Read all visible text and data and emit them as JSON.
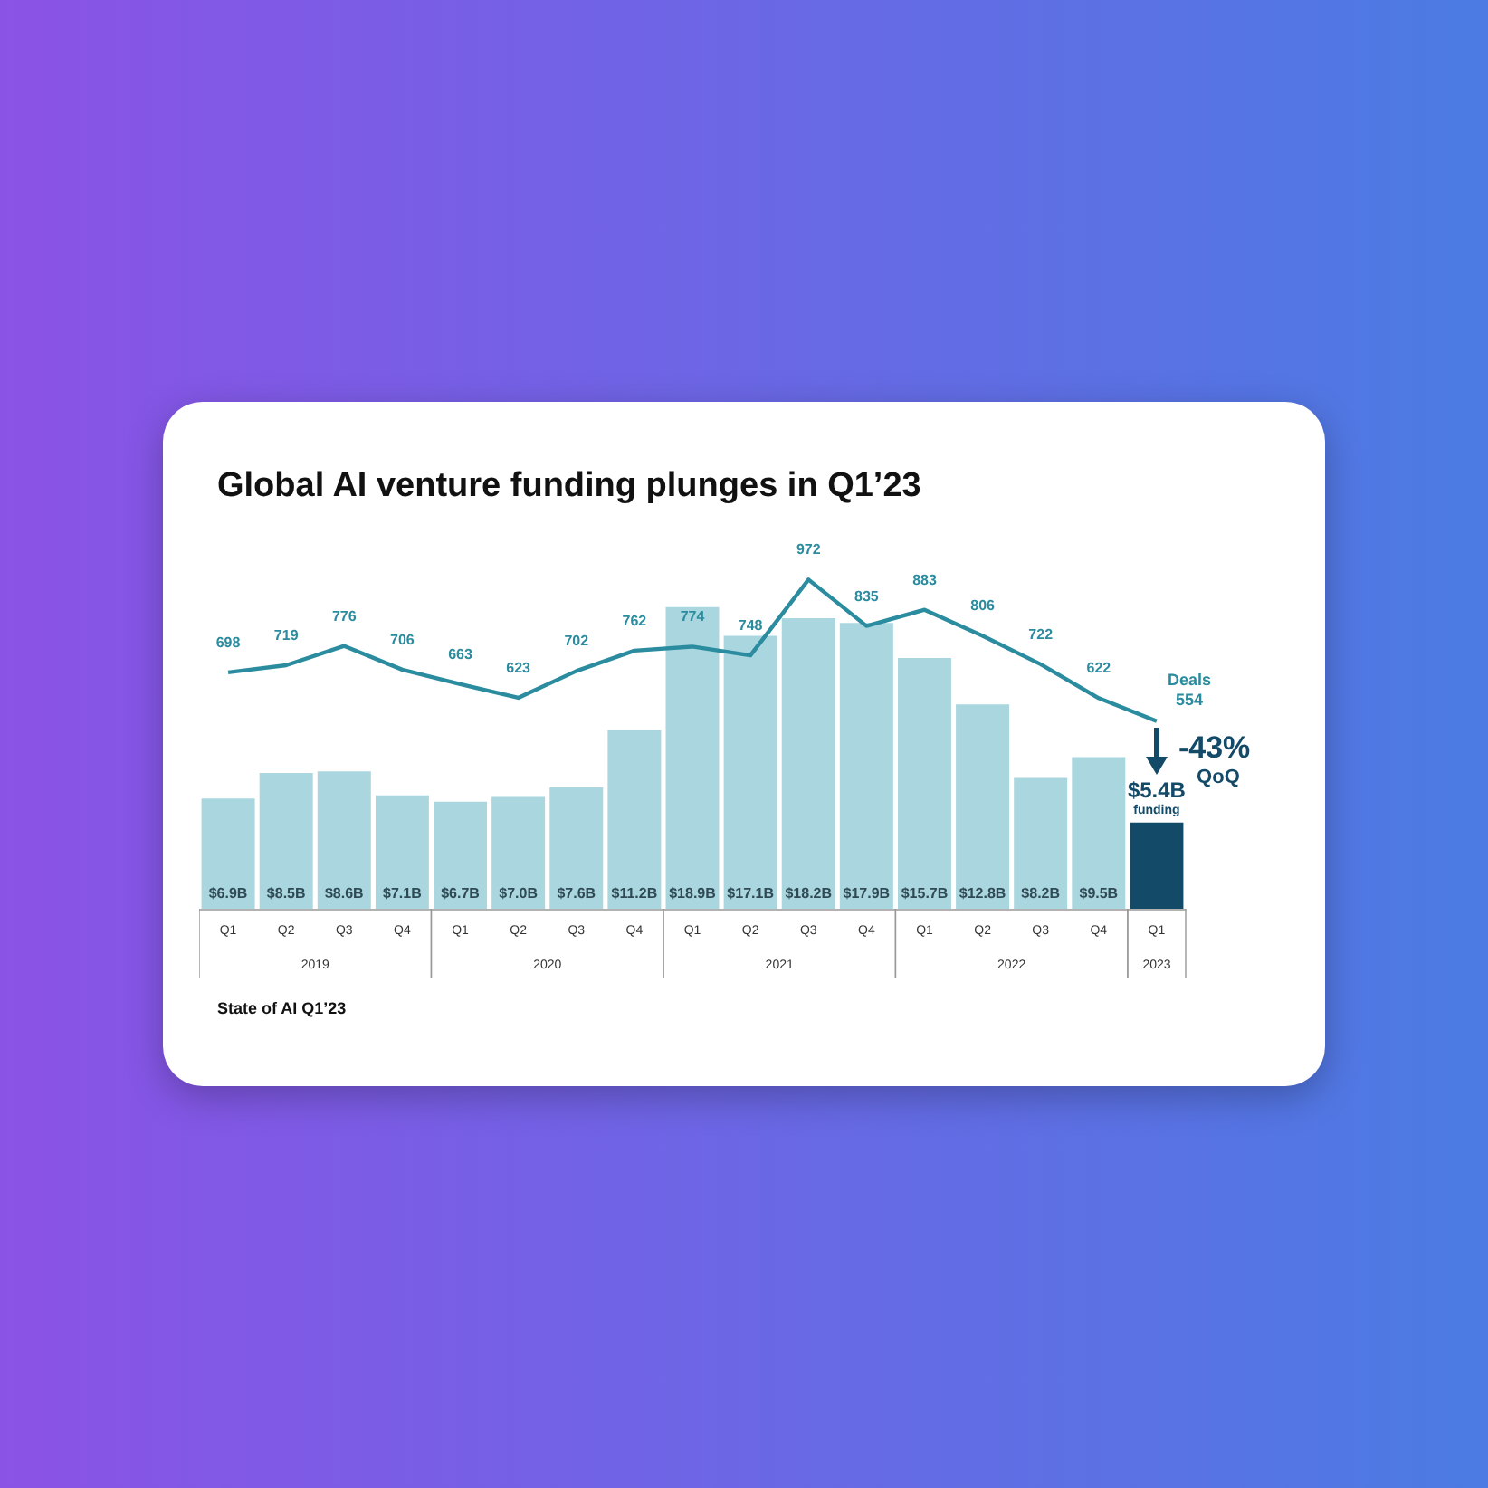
{
  "chart_data": {
    "type": "bar",
    "title": "Global AI venture funding plunges in Q1’23",
    "categories": [
      "Q1",
      "Q2",
      "Q3",
      "Q4",
      "Q1",
      "Q2",
      "Q3",
      "Q4",
      "Q1",
      "Q2",
      "Q3",
      "Q4",
      "Q1",
      "Q2",
      "Q3",
      "Q4",
      "Q1"
    ],
    "series": [
      {
        "name": "funding",
        "colors": [
          "#a9d6df",
          "#a9d6df",
          "#a9d6df",
          "#a9d6df",
          "#a9d6df",
          "#a9d6df",
          "#a9d6df",
          "#a9d6df",
          "#a9d6df",
          "#a9d6df",
          "#a9d6df",
          "#a9d6df",
          "#a9d6df",
          "#a9d6df",
          "#a9d6df",
          "#a9d6df",
          "#134a68"
        ],
        "values": [
          6.9,
          8.5,
          8.6,
          7.1,
          6.7,
          7.0,
          7.6,
          11.2,
          18.9,
          17.1,
          18.2,
          17.9,
          15.7,
          12.8,
          8.2,
          9.5,
          5.4
        ],
        "value_labels": [
          "$6.9B",
          "$8.5B",
          "$8.6B",
          "$7.1B",
          "$6.7B",
          "$7.0B",
          "$7.6B",
          "$11.2B",
          "$18.9B",
          "$17.1B",
          "$18.2B",
          "$17.9B",
          "$15.7B",
          "$12.8B",
          "$8.2B",
          "$9.5B",
          "$5.4B"
        ]
      },
      {
        "type": "line",
        "axis": "y2",
        "name": "Deals",
        "color": "#2a8c9e",
        "values": [
          698,
          719,
          776,
          706,
          663,
          623,
          702,
          762,
          774,
          748,
          972,
          835,
          883,
          806,
          722,
          622,
          554
        ]
      }
    ],
    "data_labels": true,
    "legend": false,
    "grid": false,
    "annotations": [
      "2019",
      "2020",
      "2021",
      "2022",
      "2023",
      "-43% QoQ",
      "State of AI Q1’23"
    ]
  }
}
